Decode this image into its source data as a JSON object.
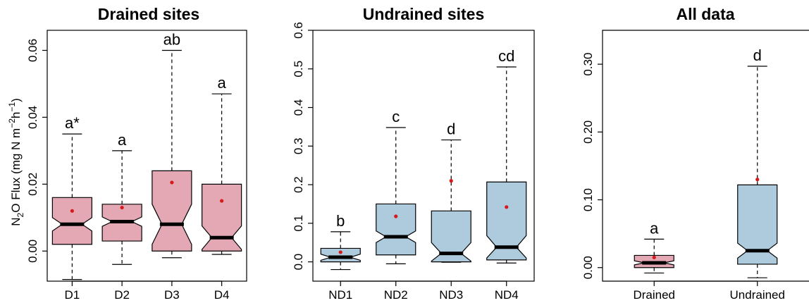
{
  "colors": {
    "drained_fill": "#e3a8b4",
    "undrained_fill": "#aecbdd",
    "mean_dot": "#d7191c",
    "median": "#000000",
    "axis": "#000000"
  },
  "y_axis_label": {
    "pre": "N",
    "sub1": "2",
    "mid": "O Flux (mg N m",
    "sup1": "−2",
    "mid2": "h",
    "sup2": "−1",
    "post": ")"
  },
  "chart_data": [
    {
      "type": "box",
      "title": "Drained sites",
      "fill": "drained",
      "ylim": [
        -0.009,
        0.066
      ],
      "yticks": [
        0.0,
        0.02,
        0.04,
        0.06
      ],
      "ytick_labels": [
        "0.00",
        "0.02",
        "0.04",
        "0.06"
      ],
      "full_box": true,
      "categories": [
        "D1",
        "D2",
        "D3",
        "D4"
      ],
      "boxes": [
        {
          "whisker_low": -0.0085,
          "q1": 0.002,
          "median": 0.008,
          "q3": 0.016,
          "whisker_high": 0.035,
          "mean": 0.012,
          "notch_low": 0.006,
          "notch_high": 0.01,
          "letter": "a*"
        },
        {
          "whisker_low": -0.004,
          "q1": 0.003,
          "median": 0.0088,
          "q3": 0.014,
          "whisker_high": 0.03,
          "mean": 0.013,
          "notch_low": 0.0074,
          "notch_high": 0.0102,
          "letter": "a"
        },
        {
          "whisker_low": -0.002,
          "q1": 0.0,
          "median": 0.008,
          "q3": 0.024,
          "whisker_high": 0.06,
          "mean": 0.0205,
          "notch_low": 0.002,
          "notch_high": 0.014,
          "letter": "ab"
        },
        {
          "whisker_low": -0.001,
          "q1": 0.0,
          "median": 0.004,
          "q3": 0.02,
          "whisker_high": 0.047,
          "mean": 0.015,
          "notch_low": 0.0005,
          "notch_high": 0.0075,
          "letter": "a"
        }
      ]
    },
    {
      "type": "box",
      "title": "Undrained sites",
      "fill": "undrained",
      "ylim": [
        -0.05,
        0.6
      ],
      "yticks": [
        0.0,
        0.1,
        0.2,
        0.3,
        0.4,
        0.5,
        0.6
      ],
      "ytick_labels": [
        "0.0",
        "0.1",
        "0.2",
        "0.3",
        "0.4",
        "0.5",
        "0.6"
      ],
      "full_box": true,
      "categories": [
        "ND1",
        "ND2",
        "ND3",
        "ND4"
      ],
      "boxes": [
        {
          "whisker_low": -0.02,
          "q1": 0.0,
          "median": 0.012,
          "q3": 0.035,
          "whisker_high": 0.078,
          "mean": 0.025,
          "notch_low": 0.004,
          "notch_high": 0.02,
          "letter": "b"
        },
        {
          "whisker_low": -0.005,
          "q1": 0.018,
          "median": 0.065,
          "q3": 0.15,
          "whisker_high": 0.348,
          "mean": 0.118,
          "notch_low": 0.05,
          "notch_high": 0.08,
          "letter": "c"
        },
        {
          "whisker_low": -0.001,
          "q1": 0.0,
          "median": 0.022,
          "q3": 0.132,
          "whisker_high": 0.316,
          "mean": 0.21,
          "notch_low": 0.002,
          "notch_high": 0.05,
          "letter": "d"
        },
        {
          "whisker_low": -0.003,
          "q1": 0.005,
          "median": 0.038,
          "q3": 0.207,
          "whisker_high": 0.505,
          "mean": 0.142,
          "notch_low": 0.01,
          "notch_high": 0.068,
          "letter": "cd"
        }
      ]
    },
    {
      "type": "box",
      "title": "All data",
      "fill": "mixed",
      "ylim": [
        -0.02,
        0.35
      ],
      "yticks": [
        0.0,
        0.1,
        0.2,
        0.3
      ],
      "ytick_labels": [
        "0.00",
        "0.10",
        "0.20",
        "0.30"
      ],
      "full_box": false,
      "categories": [
        "Drained",
        "Undrained"
      ],
      "boxes": [
        {
          "whisker_low": -0.008,
          "q1": 0.0,
          "median": 0.007,
          "q3": 0.018,
          "whisker_high": 0.042,
          "mean": 0.015,
          "notch_low": 0.004,
          "notch_high": 0.01,
          "letter": "a",
          "fill": "drained"
        },
        {
          "whisker_low": -0.015,
          "q1": 0.005,
          "median": 0.025,
          "q3": 0.122,
          "whisker_high": 0.297,
          "mean": 0.13,
          "notch_low": 0.014,
          "notch_high": 0.036,
          "letter": "d",
          "fill": "undrained"
        }
      ]
    }
  ]
}
